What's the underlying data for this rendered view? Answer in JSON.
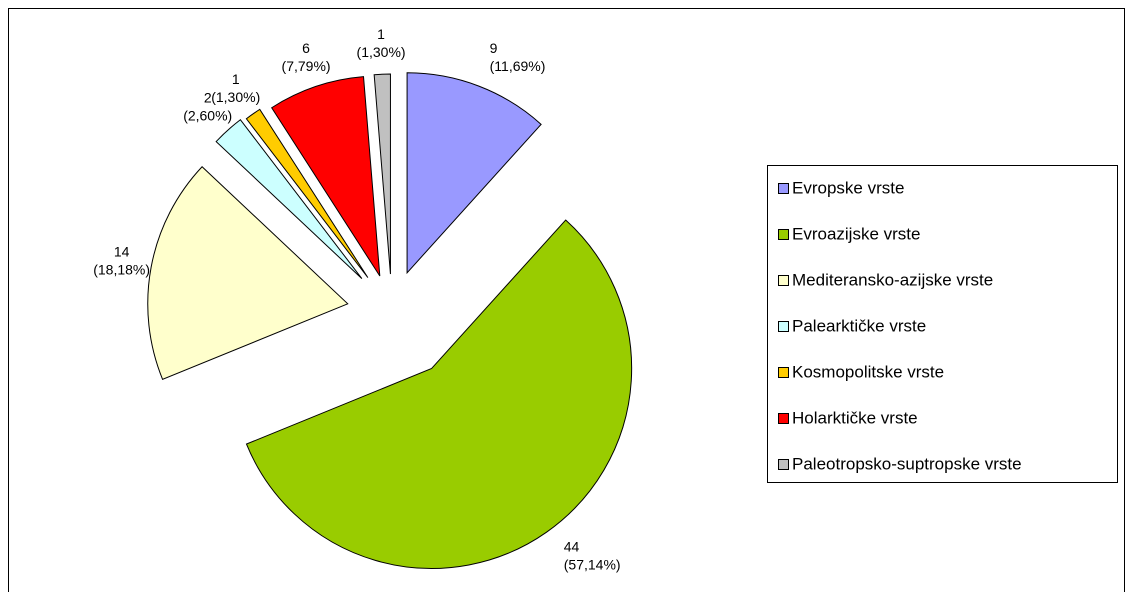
{
  "chart_data": {
    "type": "pie",
    "categories": [
      "Evropske vrste",
      "Evroazijske vrste",
      "Mediteransko-azijske vrste",
      "Palearktičke vrste",
      "Kosmopolitske vrste",
      "Holarktičke vrste",
      "Paleotropsko-suptropske vrste"
    ],
    "values": [
      9,
      44,
      14,
      2,
      1,
      6,
      1
    ],
    "percent_labels": [
      "(11,69%)",
      "(57,14%)",
      "(18,18%)",
      "(2,60%)",
      "(1,30%)",
      "(7,79%)",
      "(1,30%)"
    ],
    "colors": [
      "#9999ff",
      "#99cc00",
      "#ffffcc",
      "#ccffff",
      "#ffcc00",
      "#ff0000",
      "#c0c0c0"
    ],
    "legend": "right"
  }
}
